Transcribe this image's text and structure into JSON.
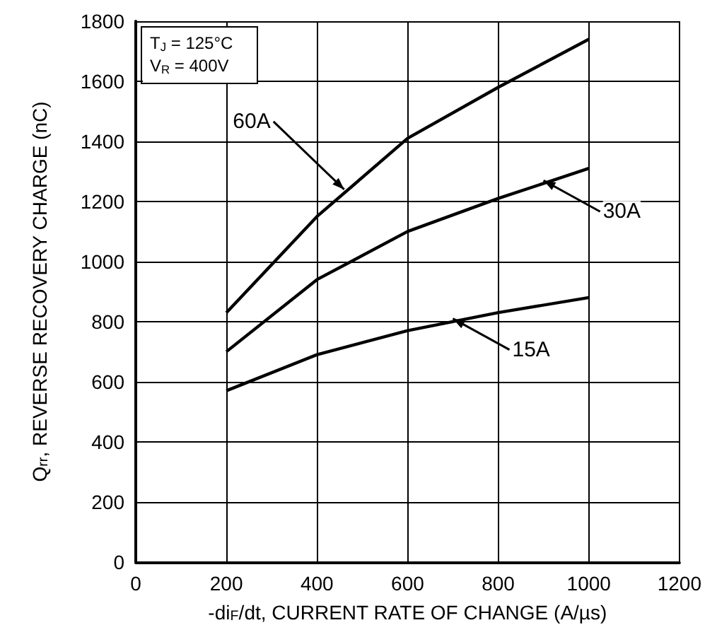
{
  "chart_data": {
    "type": "line",
    "xlabel": "-di$_{F}$/dt, CURRENT RATE OF CHANGE (A/µs)",
    "ylabel": "Q$_{rr}$, REVERSE RECOVERY CHARGE (nC)",
    "x": [
      200,
      400,
      600,
      800,
      1000
    ],
    "series": [
      {
        "color": "#000000",
        "values": [
          830,
          1150,
          1410,
          1580,
          1740
        ]
      },
      {
        "color": "#000000",
        "values": [
          700,
          940,
          1100,
          1210,
          1310
        ]
      },
      {
        "color": "#000000",
        "values": [
          570,
          690,
          770,
          830,
          880
        ]
      }
    ],
    "annotations": [
      "T$_{J}$ = 125°C",
      "V$_{R}$ = 400V",
      {
        "text": "60A",
        "x": 460,
        "y": 1240
      },
      {
        "text": "30A",
        "x": 900,
        "y": 1270
      },
      {
        "text": "15A",
        "x": 700,
        "y": 810
      }
    ],
    "xlim": [
      0,
      1200
    ],
    "xticks": [
      0,
      200,
      400,
      600,
      800,
      1000,
      1200
    ],
    "ylim": [
      0,
      1800
    ],
    "yticks": [
      0,
      200,
      400,
      600,
      800,
      1000,
      1200,
      1400,
      1600,
      1800
    ],
    "grid": true,
    "marker": "none",
    "line_style": "solid"
  }
}
